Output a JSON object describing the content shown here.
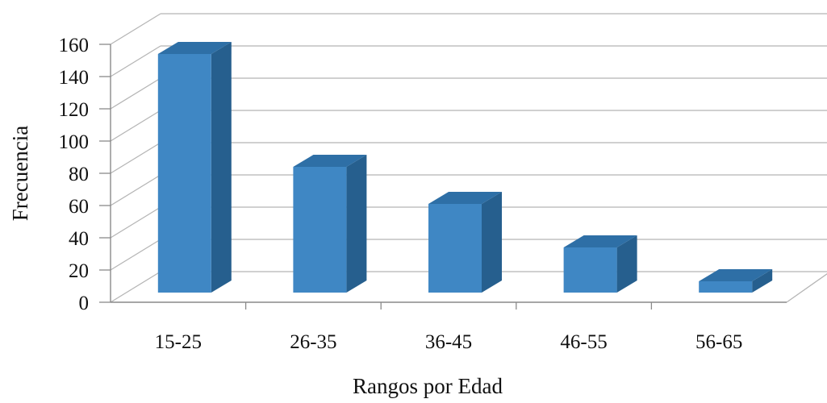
{
  "chart_data": {
    "type": "bar",
    "style": "3d-column",
    "categories": [
      "15-25",
      "26-35",
      "36-45",
      "46-55",
      "56-65"
    ],
    "values": [
      148,
      78,
      55,
      28,
      7
    ],
    "xlabel": "Rangos por Edad",
    "ylabel": "Frecuencia",
    "ylim": [
      0,
      160
    ],
    "yticks": [
      0,
      20,
      40,
      60,
      80,
      100,
      120,
      140,
      160
    ],
    "grid": true,
    "legend": "none",
    "colors": {
      "bar_front": "#3F87C4",
      "bar_top": "#2E6FA6",
      "bar_side": "#265F8E",
      "grid": "#B5B5B5",
      "axis": "#8A8A8A"
    }
  }
}
